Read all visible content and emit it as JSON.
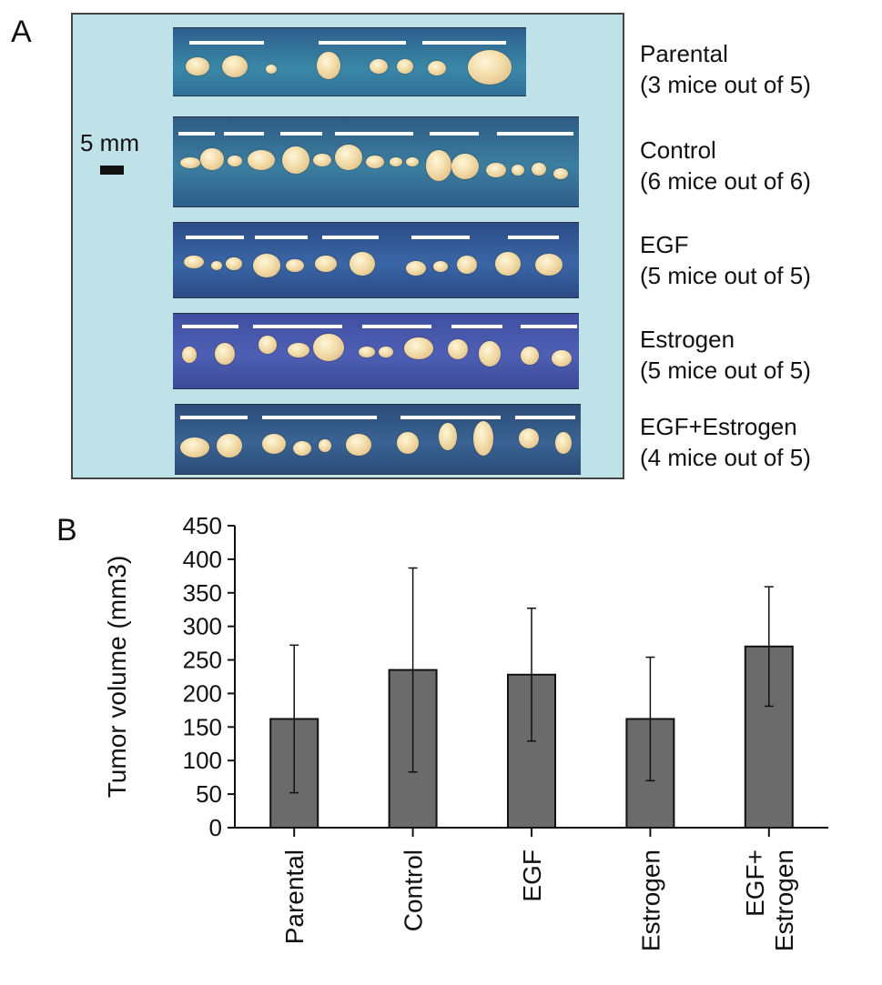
{
  "panels": {
    "a": "A",
    "b": "B"
  },
  "photo": {
    "scale_label": "5 mm",
    "groups": [
      {
        "name": "Parental",
        "detail": "(3 mice out of 5)"
      },
      {
        "name": "Control",
        "detail": "(6 mice out of 6)"
      },
      {
        "name": "EGF",
        "detail": "(5 mice out of 5)"
      },
      {
        "name": "Estrogen",
        "detail": "(5 mice out of 5)"
      },
      {
        "name": "EGF+Estrogen",
        "detail": "(4 mice out of 5)"
      }
    ]
  },
  "chart_data": {
    "type": "bar",
    "categories": [
      "Parental",
      "Control",
      "EGF",
      "Estrogen",
      "EGF+ Estrogen"
    ],
    "category_lines": [
      [
        "Parental"
      ],
      [
        "Control"
      ],
      [
        "EGF"
      ],
      [
        "Estrogen"
      ],
      [
        "EGF+",
        "Estrogen"
      ]
    ],
    "values": [
      162,
      235,
      228,
      162,
      270
    ],
    "error": [
      110,
      152,
      99,
      92,
      89
    ],
    "ylabel": "Tumor volume (mm3)",
    "xlabel": "",
    "title": "",
    "ylim": [
      0,
      450
    ],
    "yticks": [
      0,
      50,
      100,
      150,
      200,
      250,
      300,
      350,
      400,
      450
    ],
    "bar_color": "#6b6b6b",
    "grid": false
  }
}
